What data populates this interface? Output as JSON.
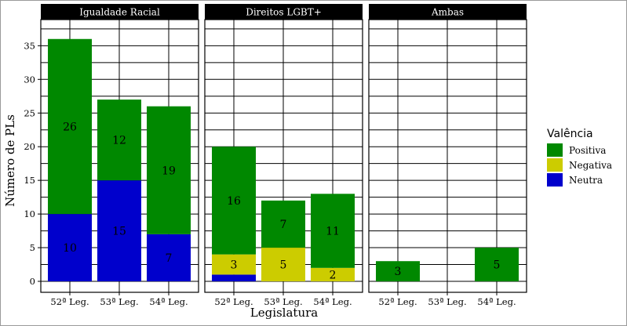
{
  "chart_data": {
    "type": "bar",
    "stacked": true,
    "facets": [
      "Igualdade Racial",
      "Direitos LGBT+",
      "Ambas"
    ],
    "categories": [
      "52ª Leg.",
      "53ª Leg.",
      "54ª Leg."
    ],
    "xlabel": "Legislatura",
    "ylabel": "Número de PLs",
    "ylim": [
      0,
      38
    ],
    "yticks": [
      0,
      5,
      10,
      15,
      20,
      25,
      30,
      35
    ],
    "grid": true,
    "legend": {
      "title": "Valência",
      "position": "right",
      "items": [
        {
          "name": "Positiva",
          "color": "#008800"
        },
        {
          "name": "Negativa",
          "color": "#cccc00"
        },
        {
          "name": "Neutra",
          "color": "#0000cc"
        }
      ]
    },
    "series": [
      {
        "name": "Neutra",
        "color": "#0000cc",
        "values": {
          "Igualdade Racial": [
            10,
            15,
            7
          ],
          "Direitos LGBT+": [
            1,
            0,
            0
          ],
          "Ambas": [
            0,
            0,
            0
          ]
        }
      },
      {
        "name": "Negativa",
        "color": "#cccc00",
        "values": {
          "Igualdade Racial": [
            0,
            0,
            0
          ],
          "Direitos LGBT+": [
            3,
            5,
            2
          ],
          "Ambas": [
            0,
            0,
            0
          ]
        }
      },
      {
        "name": "Positiva",
        "color": "#008800",
        "values": {
          "Igualdade Racial": [
            26,
            12,
            19
          ],
          "Direitos LGBT+": [
            16,
            7,
            11
          ],
          "Ambas": [
            3,
            0,
            5
          ]
        }
      }
    ],
    "data_labels": {
      "Igualdade Racial": [
        {
          "category": "52ª Leg.",
          "series": "Neutra",
          "text": "10"
        },
        {
          "category": "52ª Leg.",
          "series": "Positiva",
          "text": "26"
        },
        {
          "category": "53ª Leg.",
          "series": "Neutra",
          "text": "15"
        },
        {
          "category": "53ª Leg.",
          "series": "Positiva",
          "text": "12"
        },
        {
          "category": "54ª Leg.",
          "series": "Neutra",
          "text": "7"
        },
        {
          "category": "54ª Leg.",
          "series": "Positiva",
          "text": "19"
        }
      ],
      "Direitos LGBT+": [
        {
          "category": "52ª Leg.",
          "series": "Negativa",
          "text": "3"
        },
        {
          "category": "52ª Leg.",
          "series": "Positiva",
          "text": "16"
        },
        {
          "category": "53ª Leg.",
          "series": "Negativa",
          "text": "5"
        },
        {
          "category": "53ª Leg.",
          "series": "Positiva",
          "text": "7"
        },
        {
          "category": "54ª Leg.",
          "series": "Negativa",
          "text": "2"
        },
        {
          "category": "54ª Leg.",
          "series": "Positiva",
          "text": "11"
        }
      ],
      "Ambas": [
        {
          "category": "52ª Leg.",
          "series": "Positiva",
          "text": "3"
        },
        {
          "category": "54ª Leg.",
          "series": "Positiva",
          "text": "5"
        }
      ]
    }
  }
}
